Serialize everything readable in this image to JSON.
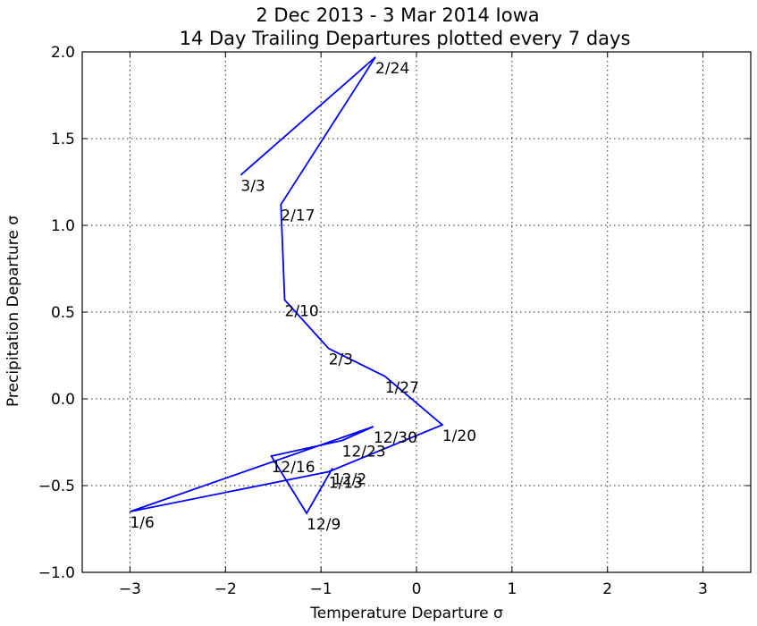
{
  "chart_data": {
    "type": "line",
    "title": "2 Dec 2013 - 3 Mar 2014 Iowa",
    "subtitle": "14 Day Trailing Departures plotted every 7 days",
    "xlabel": "Temperature Departure σ",
    "ylabel": "Precipitation Departure σ",
    "xlim": [
      -3.5,
      3.5
    ],
    "ylim": [
      -1.0,
      2.0
    ],
    "xticks": [
      -3,
      -2,
      -1,
      0,
      1,
      2,
      3
    ],
    "yticks": [
      -1.0,
      -0.5,
      0.0,
      0.5,
      1.0,
      1.5,
      2.0
    ],
    "xtick_labels": [
      "−3",
      "−2",
      "−1",
      "0",
      "1",
      "2",
      "3"
    ],
    "ytick_labels": [
      "−1.0",
      "−0.5",
      "0.0",
      "0.5",
      "1.0",
      "1.5",
      "2.0"
    ],
    "grid": true,
    "line_color": "#0000ff",
    "points": [
      {
        "label": "12/2",
        "x": -0.88,
        "y": -0.4
      },
      {
        "label": "12/9",
        "x": -1.15,
        "y": -0.66
      },
      {
        "label": "12/16",
        "x": -1.52,
        "y": -0.33
      },
      {
        "label": "12/23",
        "x": -0.78,
        "y": -0.24
      },
      {
        "label": "12/30",
        "x": -0.45,
        "y": -0.16
      },
      {
        "label": "1/6",
        "x": -3.0,
        "y": -0.65
      },
      {
        "label": "1/13",
        "x": -0.92,
        "y": -0.42
      },
      {
        "label": "1/20",
        "x": 0.27,
        "y": -0.15
      },
      {
        "label": "1/27",
        "x": -0.33,
        "y": 0.13
      },
      {
        "label": "2/3",
        "x": -0.92,
        "y": 0.29
      },
      {
        "label": "2/10",
        "x": -1.38,
        "y": 0.57
      },
      {
        "label": "2/17",
        "x": -1.42,
        "y": 1.12
      },
      {
        "label": "2/24",
        "x": -0.43,
        "y": 1.97
      },
      {
        "label": "3/3",
        "x": -1.84,
        "y": 1.29
      }
    ]
  }
}
